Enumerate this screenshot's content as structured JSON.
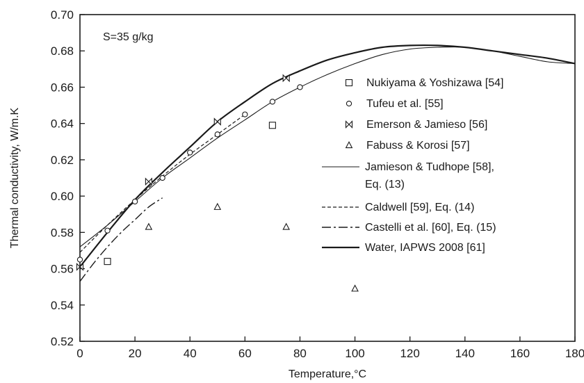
{
  "chart_data": {
    "type": "scatter",
    "title": "",
    "annotation": "S=35 g/kg",
    "xlabel": "Temperature,°C",
    "ylabel": "Thermal conductivity, W/m.K",
    "xlim": [
      0,
      180
    ],
    "ylim": [
      0.52,
      0.7
    ],
    "x_ticks": [
      0,
      20,
      40,
      60,
      80,
      100,
      120,
      140,
      160,
      180
    ],
    "y_ticks": [
      "0.52",
      "0.54",
      "0.56",
      "0.58",
      "0.60",
      "0.62",
      "0.64",
      "0.66",
      "0.68",
      "0.70"
    ],
    "grid": false,
    "legend_position": "right",
    "series": [
      {
        "name": "Nukiyama & Yoshizawa [54]",
        "kind": "points",
        "marker": "square",
        "x": [
          10,
          70
        ],
        "y": [
          0.564,
          0.639
        ]
      },
      {
        "name": "Tufeu et al. [55]",
        "kind": "points",
        "marker": "circle",
        "x": [
          0,
          10,
          20,
          30,
          40,
          50,
          60,
          70,
          80
        ],
        "y": [
          0.565,
          0.581,
          0.597,
          0.61,
          0.624,
          0.634,
          0.645,
          0.652,
          0.66
        ]
      },
      {
        "name": "Emerson & Jamieso [56]",
        "kind": "points",
        "marker": "bowtie",
        "x": [
          0,
          25,
          50,
          75
        ],
        "y": [
          0.561,
          0.608,
          0.641,
          0.665
        ]
      },
      {
        "name": "Fabuss & Korosi [57]",
        "kind": "points",
        "marker": "triangle",
        "x": [
          25,
          50,
          75,
          100
        ],
        "y": [
          0.583,
          0.594,
          0.583,
          0.549
        ]
      },
      {
        "name": "Jamieson & Tudhope [58],",
        "name_line2": "Eq. (13)",
        "kind": "line",
        "style": "thin",
        "x": [
          0,
          10,
          20,
          30,
          40,
          50,
          60,
          70,
          80,
          90,
          100,
          110,
          120,
          130,
          140,
          150,
          160,
          170,
          180
        ],
        "y": [
          0.572,
          0.584,
          0.597,
          0.61,
          0.621,
          0.632,
          0.642,
          0.652,
          0.66,
          0.667,
          0.673,
          0.678,
          0.681,
          0.682,
          0.682,
          0.68,
          0.677,
          0.674,
          0.673
        ]
      },
      {
        "name": "Caldwell [59], Eq. (14)",
        "kind": "line",
        "style": "dashed",
        "x": [
          0,
          10,
          20,
          30,
          40,
          50,
          60
        ],
        "y": [
          0.569,
          0.584,
          0.598,
          0.611,
          0.623,
          0.634,
          0.645
        ]
      },
      {
        "name": "Castelli et al. [60], Eq. (15)",
        "kind": "line",
        "style": "longdash",
        "x": [
          0,
          5,
          10,
          15,
          20,
          25,
          30
        ],
        "y": [
          0.553,
          0.563,
          0.572,
          0.58,
          0.587,
          0.594,
          0.599
        ]
      },
      {
        "name": "Water, IAPWS 2008 [61]",
        "kind": "line",
        "style": "thick",
        "x": [
          0,
          10,
          20,
          30,
          40,
          50,
          60,
          70,
          80,
          90,
          100,
          110,
          120,
          130,
          140,
          150,
          160,
          170,
          180
        ],
        "y": [
          0.561,
          0.58,
          0.598,
          0.613,
          0.627,
          0.641,
          0.652,
          0.662,
          0.669,
          0.675,
          0.679,
          0.682,
          0.683,
          0.683,
          0.682,
          0.68,
          0.678,
          0.676,
          0.673
        ]
      }
    ]
  }
}
